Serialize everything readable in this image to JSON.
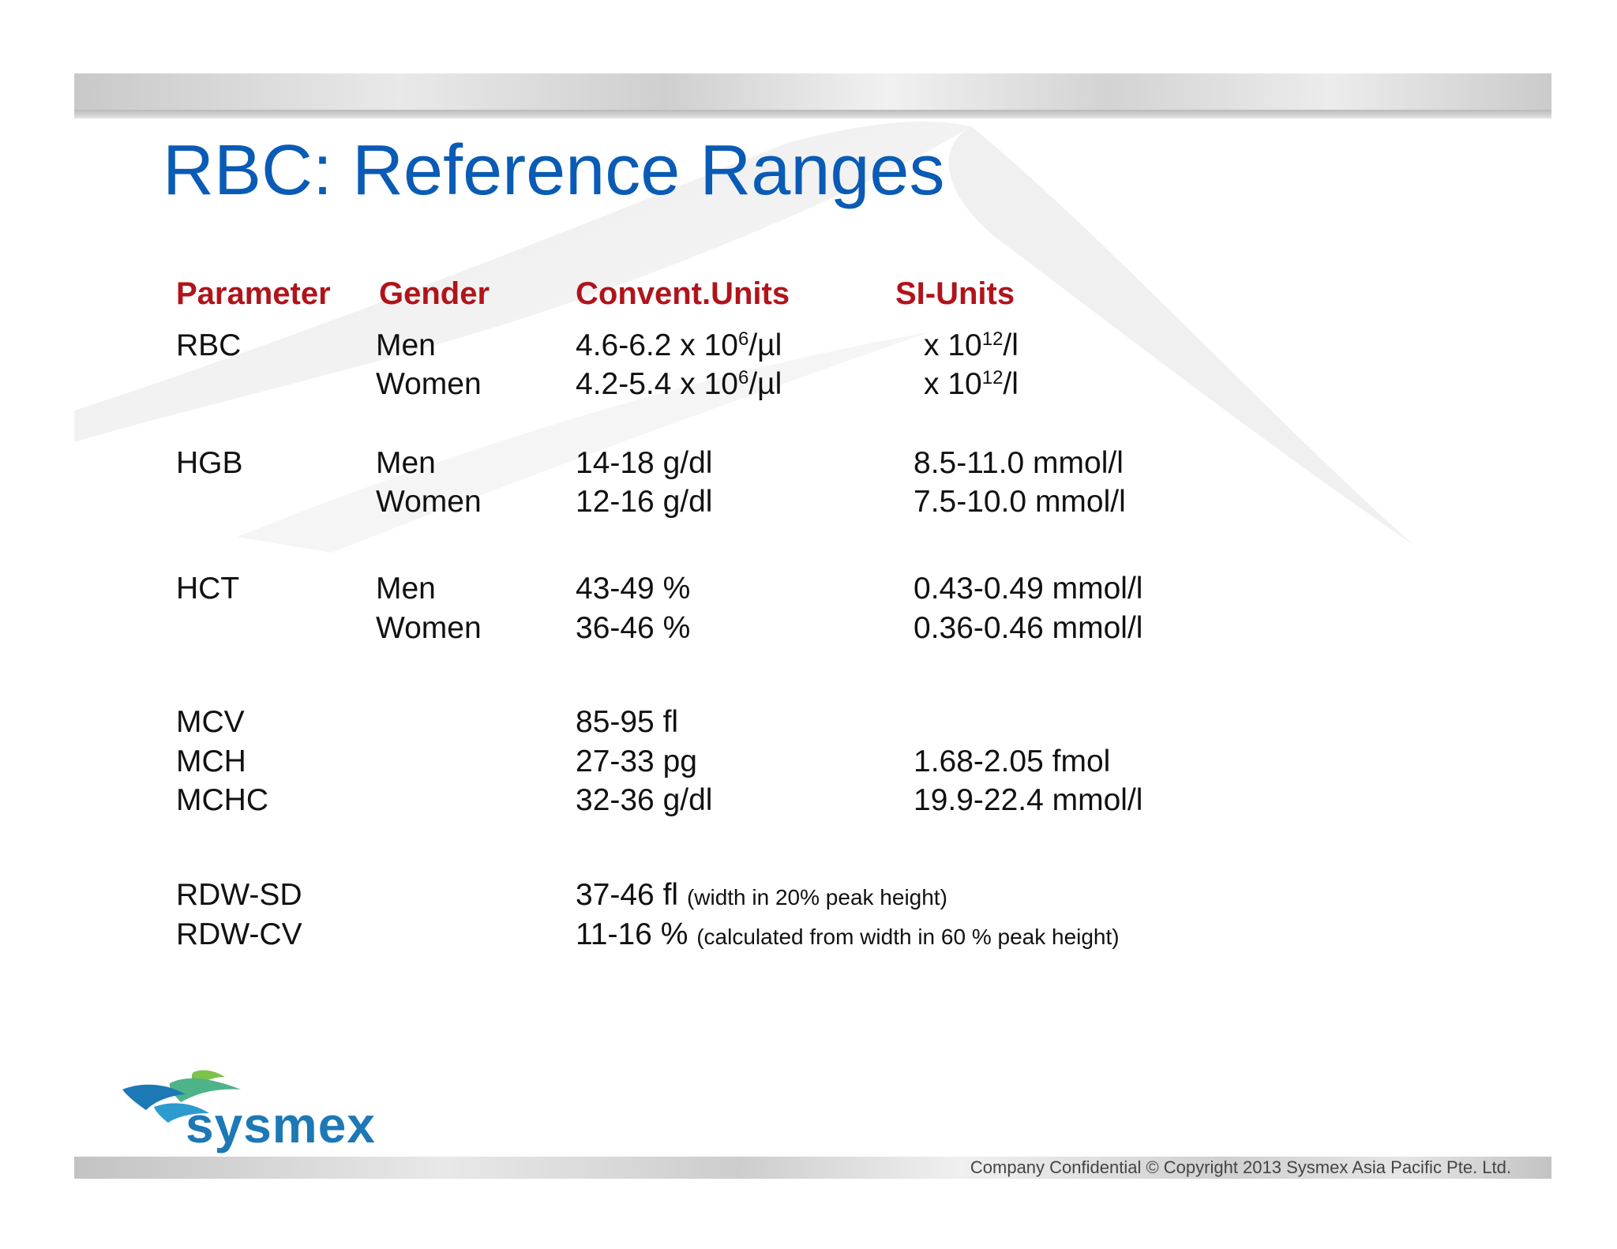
{
  "slide": {
    "title": "RBC: Reference Ranges",
    "headers": {
      "parameter": "Parameter",
      "gender": "Gender",
      "convent_units": "Convent.Units",
      "si_units": "SI-Units"
    },
    "rbc": {
      "parameter": "RBC",
      "men_label": "Men",
      "women_label": "Women",
      "men_conv": "4.6-6.2 x 10",
      "men_conv_exp": "6",
      "men_conv_unit": "/µl",
      "women_conv": "4.2-5.4 x 10",
      "women_conv_exp": "6",
      "women_conv_unit": "/µl",
      "men_si": "x 10",
      "men_si_exp": "12",
      "men_si_unit": "/l",
      "women_si": "x 10",
      "women_si_exp": "12",
      "women_si_unit": "/l"
    },
    "hgb": {
      "parameter": "HGB",
      "men_label": "Men",
      "women_label": "Women",
      "men_conv": "14-18 g/dl",
      "women_conv": "12-16 g/dl",
      "men_si": "8.5-11.0 mmol/l",
      "women_si": "7.5-10.0 mmol/l"
    },
    "hct": {
      "parameter": "HCT",
      "men_label": "Men",
      "women_label": "Women",
      "men_conv": "43-49 %",
      "women_conv": "36-46 %",
      "men_si": "0.43-0.49 mmol/l",
      "women_si": "0.36-0.46 mmol/l"
    },
    "mcv": {
      "parameter": "MCV",
      "conv": "85-95 fl"
    },
    "mch": {
      "parameter": "MCH",
      "conv": "27-33 pg",
      "si": "1.68-2.05 fmol"
    },
    "mchc": {
      "parameter": "MCHC",
      "conv": "32-36 g/dl",
      "si": "19.9-22.4 mmol/l"
    },
    "rdw_sd": {
      "parameter": "RDW-SD",
      "conv": "37-46 fl",
      "note": "(width in 20% peak height)"
    },
    "rdw_cv": {
      "parameter": "RDW-CV",
      "conv": "11-16 %",
      "note": "(calculated from width  in 60 % peak height)"
    },
    "logo_text": "sysmex",
    "footer": "Company Confidential © Copyright 2013 Sysmex Asia Pacific Pte. Ltd."
  },
  "colors": {
    "title": "#0a5bb5",
    "header": "#b0141b",
    "logo_blue": "#1d78b6",
    "logo_green": "#7dc24b"
  }
}
